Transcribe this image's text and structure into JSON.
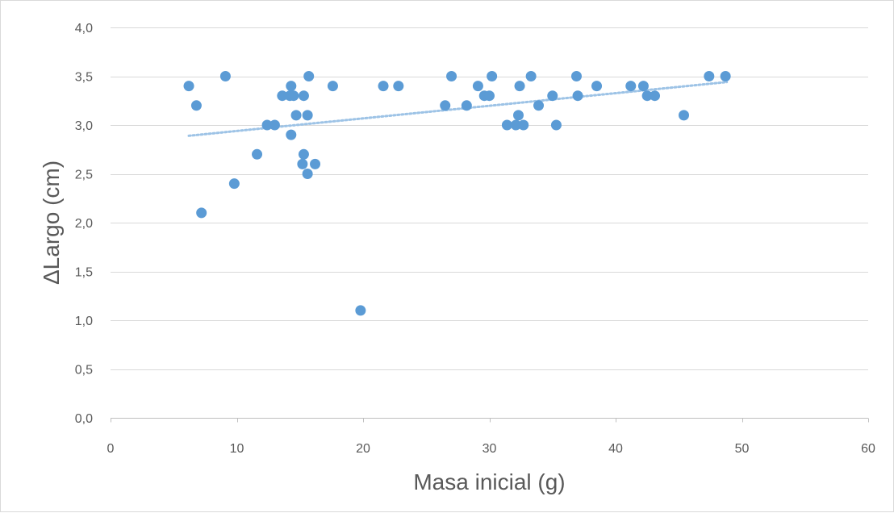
{
  "chart_data": {
    "type": "scatter",
    "title": "",
    "xlabel": "Masa inicial (g)",
    "ylabel": "ΔLargo (cm)",
    "xlim": [
      0,
      60
    ],
    "ylim": [
      0,
      4
    ],
    "x_ticks": [
      0,
      10,
      20,
      30,
      40,
      50,
      60
    ],
    "x_tick_labels": [
      "0",
      "10",
      "20",
      "30",
      "40",
      "50",
      "60"
    ],
    "y_ticks": [
      0,
      0.5,
      1.0,
      1.5,
      2.0,
      2.5,
      3.0,
      3.5,
      4.0
    ],
    "y_tick_labels": [
      "0,0",
      "0,5",
      "1,0",
      "1,5",
      "2,0",
      "2,5",
      "3,0",
      "3,5",
      "4,0"
    ],
    "grid": "horizontal",
    "legend": "none",
    "marker_color": "#5b9bd5",
    "trendline": {
      "type": "linear",
      "style": "dotted",
      "color": "#9dc3e6",
      "x": [
        6.2,
        48.8
      ],
      "y": [
        2.89,
        3.44
      ]
    },
    "series": [
      {
        "points": [
          [
            6.2,
            3.4
          ],
          [
            6.8,
            3.2
          ],
          [
            7.2,
            2.1
          ],
          [
            9.1,
            3.5
          ],
          [
            9.8,
            2.4
          ],
          [
            11.6,
            2.7
          ],
          [
            12.4,
            3.0
          ],
          [
            13.0,
            3.0
          ],
          [
            13.6,
            3.3
          ],
          [
            14.2,
            3.3
          ],
          [
            14.3,
            3.4
          ],
          [
            14.3,
            2.9
          ],
          [
            14.5,
            3.3
          ],
          [
            14.7,
            3.1
          ],
          [
            15.2,
            2.6
          ],
          [
            15.3,
            2.7
          ],
          [
            15.3,
            3.3
          ],
          [
            15.6,
            2.5
          ],
          [
            15.6,
            3.1
          ],
          [
            15.7,
            3.5
          ],
          [
            16.2,
            2.6
          ],
          [
            17.6,
            3.4
          ],
          [
            19.8,
            1.1
          ],
          [
            21.6,
            3.4
          ],
          [
            22.8,
            3.4
          ],
          [
            26.5,
            3.2
          ],
          [
            27.0,
            3.5
          ],
          [
            28.2,
            3.2
          ],
          [
            29.1,
            3.4
          ],
          [
            29.6,
            3.3
          ],
          [
            30.0,
            3.3
          ],
          [
            30.2,
            3.5
          ],
          [
            31.4,
            3.0
          ],
          [
            32.1,
            3.0
          ],
          [
            32.3,
            3.1
          ],
          [
            32.4,
            3.4
          ],
          [
            32.7,
            3.0
          ],
          [
            33.3,
            3.5
          ],
          [
            33.9,
            3.2
          ],
          [
            35.0,
            3.3
          ],
          [
            35.3,
            3.0
          ],
          [
            36.9,
            3.5
          ],
          [
            37.0,
            3.3
          ],
          [
            38.5,
            3.4
          ],
          [
            41.2,
            3.4
          ],
          [
            42.2,
            3.4
          ],
          [
            42.5,
            3.3
          ],
          [
            43.1,
            3.3
          ],
          [
            45.4,
            3.1
          ],
          [
            47.4,
            3.5
          ],
          [
            48.7,
            3.5
          ]
        ]
      }
    ]
  }
}
